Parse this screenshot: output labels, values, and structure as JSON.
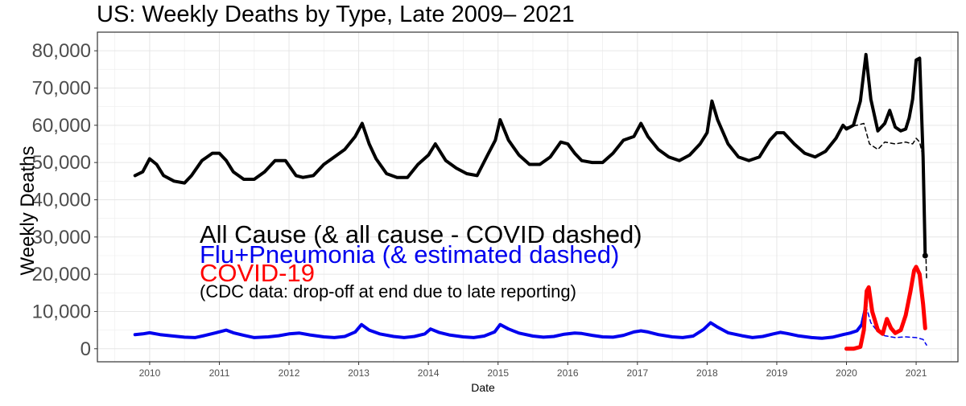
{
  "chart_data": {
    "type": "line",
    "title": "US: Weekly Deaths by Type, Late 2009– 2021",
    "xlabel": "Date",
    "ylabel": "Weekly Deaths",
    "ylim": [
      -3500,
      85000
    ],
    "xlim": [
      2009.25,
      2021.6
    ],
    "grid": true,
    "x_ticks": [
      "2010",
      "2011",
      "2012",
      "2013",
      "2014",
      "2015",
      "2016",
      "2017",
      "2018",
      "2019",
      "2020",
      "2021"
    ],
    "y_ticks": [
      "0",
      "10,000",
      "20,000",
      "30,000",
      "40,000",
      "50,000",
      "60,000",
      "70,000",
      "80,000"
    ],
    "legend_lines": [
      "All Cause (& all cause - COVID dashed)",
      "Flu+Pneumonia (& estimated dashed)",
      "COVID-19",
      "(CDC data: drop-off at end due to late reporting)"
    ],
    "legend_placement": "inside-left",
    "colors": {
      "all_cause": "#000000",
      "flu": "#0000ee",
      "covid": "#ff0000"
    },
    "series": [
      {
        "key": "all_cause",
        "style": "solid",
        "x": [
          2009.79,
          2009.9,
          2010.0,
          2010.1,
          2010.2,
          2010.35,
          2010.5,
          2010.6,
          2010.75,
          2010.9,
          2011.0,
          2011.1,
          2011.2,
          2011.35,
          2011.5,
          2011.65,
          2011.8,
          2011.95,
          2012.1,
          2012.2,
          2012.35,
          2012.5,
          2012.65,
          2012.8,
          2012.95,
          2013.05,
          2013.15,
          2013.25,
          2013.4,
          2013.55,
          2013.7,
          2013.85,
          2014.0,
          2014.1,
          2014.25,
          2014.4,
          2014.55,
          2014.7,
          2014.85,
          2014.96,
          2015.03,
          2015.15,
          2015.3,
          2015.45,
          2015.6,
          2015.75,
          2015.9,
          2016.0,
          2016.1,
          2016.2,
          2016.35,
          2016.5,
          2016.65,
          2016.8,
          2016.95,
          2017.05,
          2017.15,
          2017.3,
          2017.45,
          2017.6,
          2017.75,
          2017.9,
          2018.0,
          2018.07,
          2018.15,
          2018.3,
          2018.45,
          2018.6,
          2018.75,
          2018.9,
          2019.0,
          2019.1,
          2019.25,
          2019.4,
          2019.55,
          2019.7,
          2019.85,
          2019.95,
          2020.0,
          2020.1,
          2020.2,
          2020.28,
          2020.35,
          2020.45,
          2020.55,
          2020.62,
          2020.7,
          2020.78,
          2020.85,
          2020.9,
          2020.95,
          2021.0,
          2021.05,
          2021.1,
          2021.13
        ],
        "y": [
          46500,
          47500,
          51000,
          49500,
          46500,
          45000,
          44500,
          46500,
          50500,
          52500,
          52500,
          50500,
          47500,
          45500,
          45500,
          47500,
          50500,
          50500,
          46500,
          46000,
          46500,
          49500,
          51500,
          53500,
          57000,
          60500,
          55000,
          51000,
          47000,
          46000,
          46000,
          49500,
          52000,
          55000,
          50500,
          48500,
          47000,
          46500,
          52000,
          56000,
          61500,
          56000,
          52000,
          49500,
          49500,
          51500,
          55500,
          55000,
          52500,
          50500,
          50000,
          50000,
          52500,
          56000,
          57000,
          60500,
          57000,
          53500,
          51500,
          50500,
          52000,
          55000,
          58000,
          66500,
          61500,
          55000,
          51500,
          50500,
          51500,
          56000,
          58000,
          58000,
          55000,
          52500,
          51500,
          53000,
          56500,
          60000,
          59000,
          60000,
          66500,
          79000,
          67000,
          58500,
          60500,
          64000,
          59500,
          58500,
          59000,
          62000,
          67000,
          77500,
          78000,
          51500,
          25000
        ]
      },
      {
        "key": "all_cause_minus_covid",
        "style": "dashed",
        "x": [
          2020.0,
          2020.15,
          2020.25,
          2020.33,
          2020.45,
          2020.55,
          2020.7,
          2020.85,
          2020.95,
          2021.0,
          2021.05,
          2021.1,
          2021.15
        ],
        "y": [
          59500,
          60000,
          60500,
          55000,
          53500,
          55500,
          55000,
          55500,
          55000,
          56500,
          55500,
          51500,
          19000
        ]
      },
      {
        "key": "flu_pneumonia",
        "style": "solid",
        "x": [
          2009.79,
          2009.9,
          2010.0,
          2010.15,
          2010.3,
          2010.5,
          2010.65,
          2010.8,
          2010.95,
          2011.1,
          2011.2,
          2011.35,
          2011.5,
          2011.7,
          2011.85,
          2012.0,
          2012.15,
          2012.3,
          2012.5,
          2012.65,
          2012.8,
          2012.95,
          2013.04,
          2013.15,
          2013.3,
          2013.5,
          2013.65,
          2013.8,
          2013.95,
          2014.03,
          2014.15,
          2014.3,
          2014.5,
          2014.65,
          2014.8,
          2014.95,
          2015.03,
          2015.15,
          2015.3,
          2015.5,
          2015.65,
          2015.8,
          2015.95,
          2016.1,
          2016.2,
          2016.35,
          2016.5,
          2016.65,
          2016.8,
          2016.95,
          2017.05,
          2017.15,
          2017.3,
          2017.5,
          2017.65,
          2017.8,
          2017.95,
          2018.05,
          2018.15,
          2018.3,
          2018.5,
          2018.65,
          2018.8,
          2018.95,
          2019.05,
          2019.15,
          2019.3,
          2019.5,
          2019.65,
          2019.8,
          2019.95,
          2020.05,
          2020.15,
          2020.22,
          2020.28
        ],
        "y": [
          3800,
          4000,
          4300,
          3800,
          3500,
          3100,
          3000,
          3600,
          4300,
          5000,
          4300,
          3600,
          3000,
          3200,
          3500,
          4000,
          4200,
          3700,
          3200,
          3000,
          3300,
          4500,
          6500,
          5000,
          4000,
          3300,
          3000,
          3300,
          4000,
          5300,
          4400,
          3700,
          3200,
          3000,
          3400,
          4500,
          6500,
          5300,
          4200,
          3400,
          3100,
          3300,
          3900,
          4200,
          4100,
          3600,
          3200,
          3100,
          3600,
          4500,
          4800,
          4500,
          3800,
          3200,
          3000,
          3400,
          5200,
          7000,
          5800,
          4300,
          3500,
          3000,
          3300,
          4000,
          4400,
          4100,
          3500,
          3000,
          2800,
          3100,
          3800,
          4200,
          4800,
          6500,
          11500
        ]
      },
      {
        "key": "flu_pneumonia_estimated",
        "style": "dashed",
        "x": [
          2020.28,
          2020.35,
          2020.45,
          2020.55,
          2020.7,
          2020.85,
          2021.0,
          2021.1,
          2021.15
        ],
        "y": [
          11500,
          7000,
          4500,
          3500,
          3000,
          3200,
          3000,
          2500,
          1000
        ]
      },
      {
        "key": "covid",
        "style": "solid",
        "x": [
          2020.0,
          2020.1,
          2020.2,
          2020.25,
          2020.29,
          2020.32,
          2020.37,
          2020.45,
          2020.52,
          2020.58,
          2020.64,
          2020.7,
          2020.78,
          2020.85,
          2020.92,
          2020.97,
          2021.0,
          2021.05,
          2021.1,
          2021.13
        ],
        "y": [
          0,
          0,
          500,
          5000,
          15500,
          16500,
          10000,
          5000,
          4000,
          8000,
          5500,
          4200,
          5000,
          9000,
          15500,
          21000,
          22000,
          20000,
          12000,
          5500
        ]
      }
    ]
  }
}
